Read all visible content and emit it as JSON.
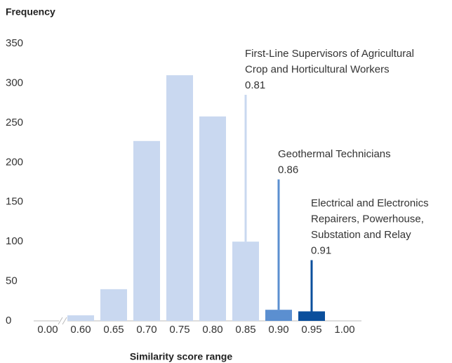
{
  "chart_data": {
    "type": "bar",
    "y_label": "Frequency",
    "x_label": "Similarity score range",
    "categories": [
      "0.00",
      "0.60",
      "0.65",
      "0.70",
      "0.75",
      "0.80",
      "0.85",
      "0.90",
      "0.95",
      "1.00"
    ],
    "values": [
      null,
      7,
      40,
      227,
      310,
      258,
      100,
      14,
      12,
      null
    ],
    "colors": [
      "#c9d8f0",
      "#c9d8f0",
      "#c9d8f0",
      "#c9d8f0",
      "#c9d8f0",
      "#c9d8f0",
      "#c9d8f0",
      "#5b8fd0",
      "#0b4f9c",
      "#c9d8f0"
    ],
    "ylim": [
      0,
      350
    ],
    "yticks": [
      0,
      50,
      100,
      150,
      200,
      250,
      300,
      350
    ],
    "axis_break": true,
    "annotations": [
      {
        "text": [
          "First-Line Supervisors of Agricultural",
          "Crop and Horticultural Workers"
        ],
        "value": 0.81,
        "color": "#c9d8f0"
      },
      {
        "text": [
          "Geothermal Technicians"
        ],
        "value": 0.86,
        "color": "#5b8fd0"
      },
      {
        "text": [
          "Electrical and Electronics",
          "Repairers, Powerhouse,",
          "Substation and Relay"
        ],
        "value": 0.91,
        "color": "#0b4f9c"
      }
    ]
  }
}
